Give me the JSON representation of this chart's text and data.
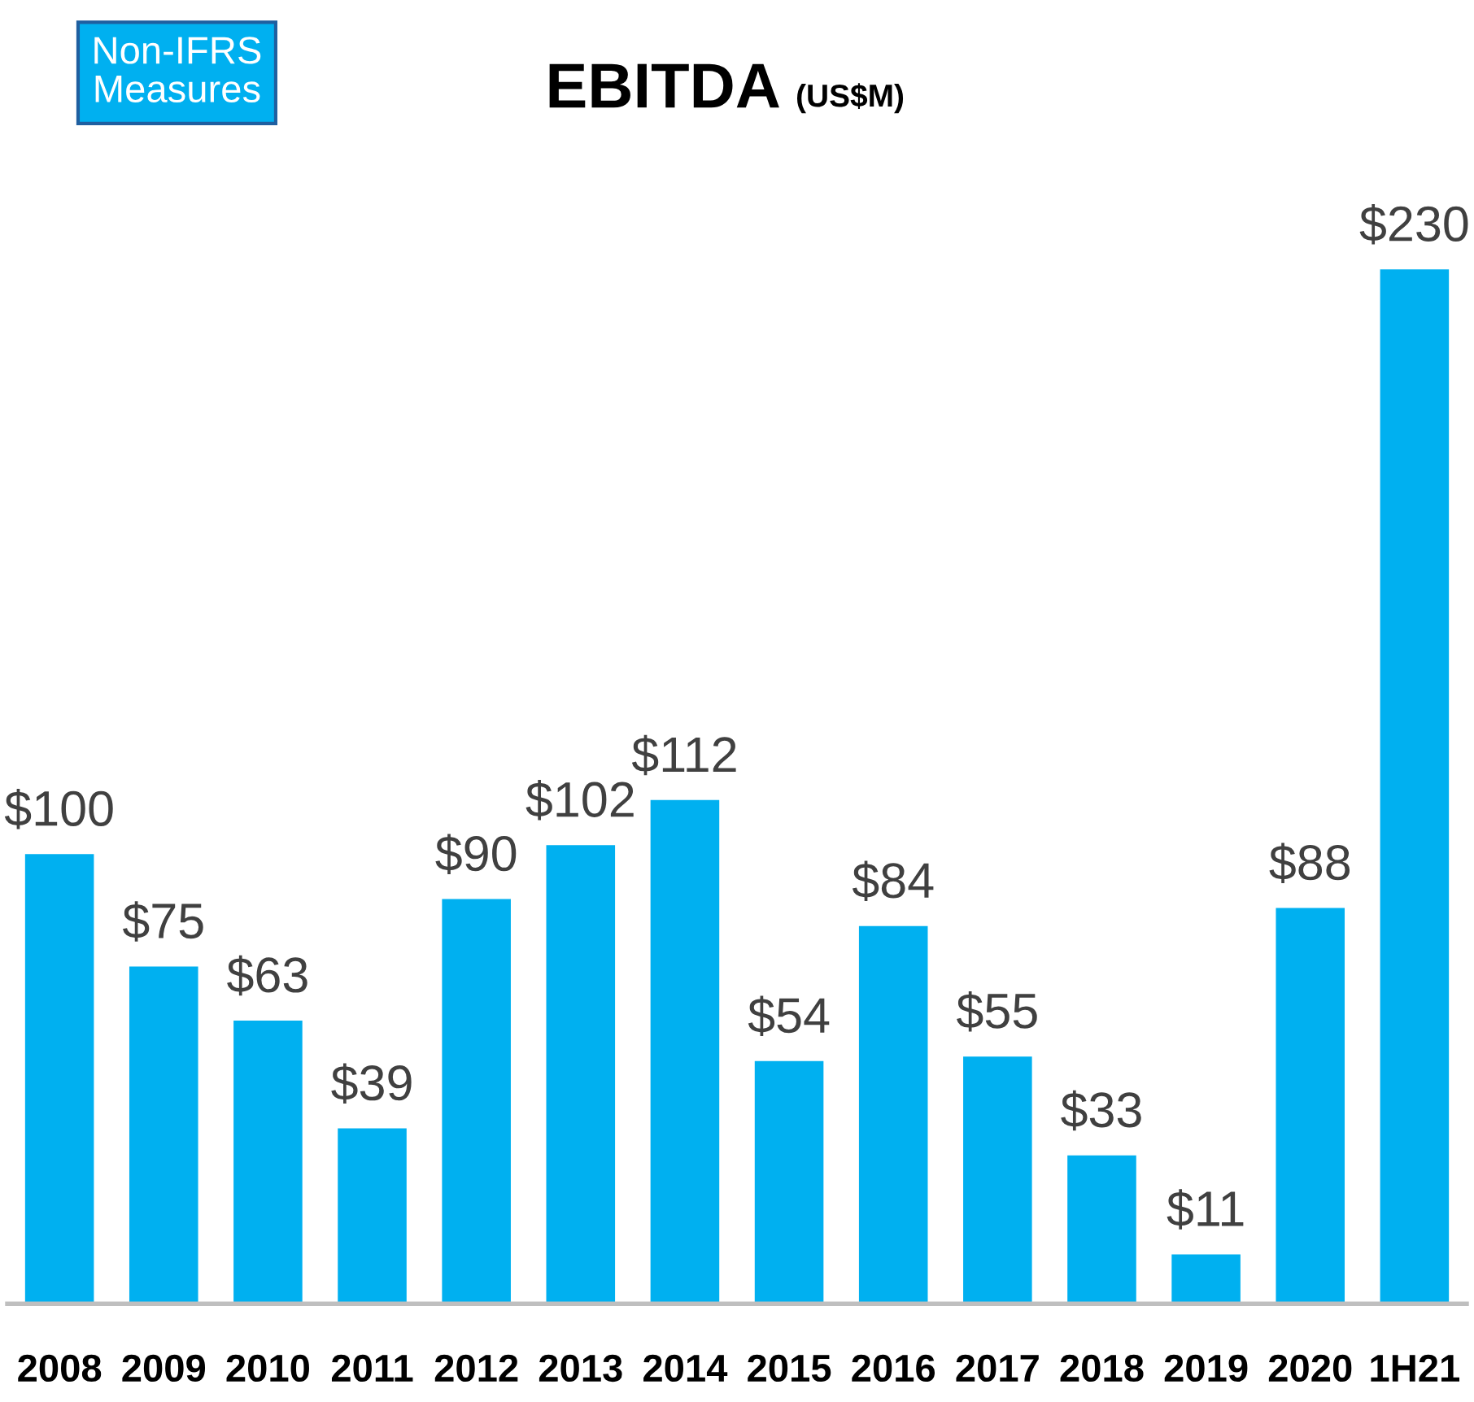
{
  "chart_data": {
    "type": "bar",
    "title": "EBITDA",
    "subtitle": "(US$M)",
    "annotations": [
      "Non-IFRS Measures"
    ],
    "categories": [
      "2008",
      "2009",
      "2010",
      "2011",
      "2012",
      "2013",
      "2014",
      "2015",
      "2016",
      "2017",
      "2018",
      "2019",
      "2020",
      "1H21"
    ],
    "values": [
      100,
      75,
      63,
      39,
      90,
      102,
      112,
      54,
      84,
      55,
      33,
      11,
      88,
      230
    ],
    "value_labels": [
      "$100",
      "$75",
      "$63",
      "$39",
      "$90",
      "$102",
      "$112",
      "$54",
      "$84",
      "$55",
      "$33",
      "$11",
      "$88",
      "$230"
    ],
    "color": "#00b0f0",
    "grid": false,
    "legend": false
  }
}
